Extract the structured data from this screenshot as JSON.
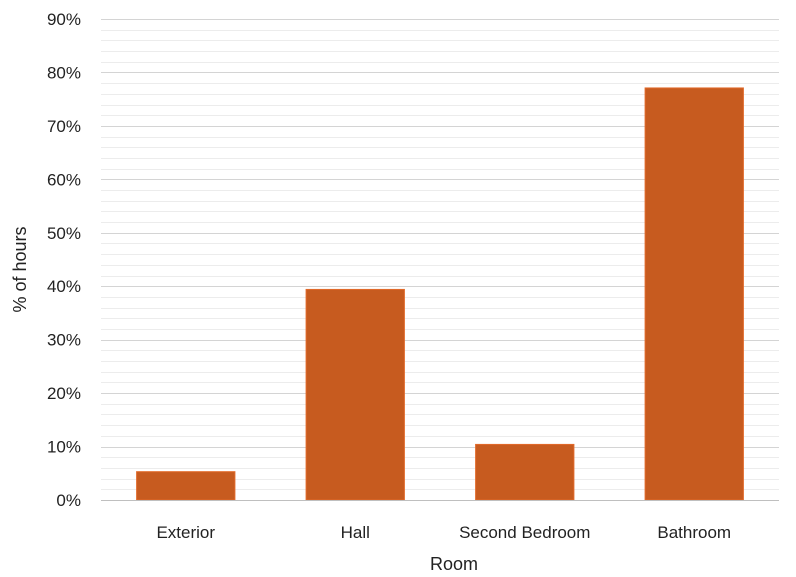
{
  "chart_data": {
    "type": "bar",
    "title": "",
    "xlabel": "Room",
    "ylabel": "% of hours",
    "categories": [
      "Exterior",
      "Hall",
      "Second Bedroom",
      "Bathroom"
    ],
    "values": [
      5.3,
      39.4,
      10.4,
      77.1
    ],
    "unit": "%",
    "ylim": [
      0,
      90
    ],
    "y_ticks": [
      "0%",
      "10%",
      "20%",
      "30%",
      "40%",
      "50%",
      "60%",
      "70%",
      "80%",
      "90%"
    ],
    "grid": "major and minor horizontal",
    "legend": "none",
    "colors": {
      "bar": "#c75b1f",
      "bar_edge": "#e26a2a"
    }
  }
}
